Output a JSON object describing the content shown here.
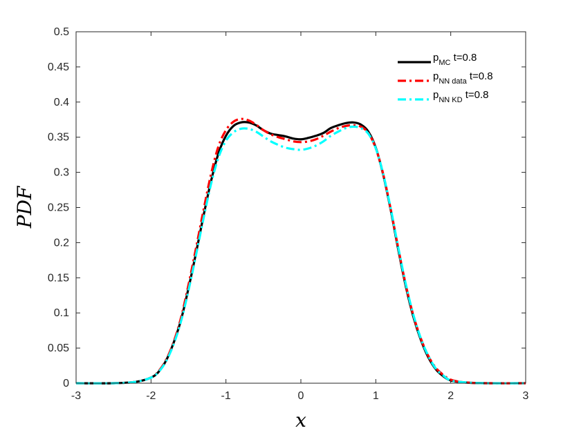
{
  "chart_data": {
    "type": "line",
    "xlabel": "x",
    "ylabel": "PDF",
    "xlim": [
      -3,
      3
    ],
    "ylim": [
      0,
      0.5
    ],
    "xticks": [
      "-3",
      "-2",
      "-1",
      "0",
      "1",
      "2",
      "3"
    ],
    "yticks": [
      "0",
      "0.05",
      "0.1",
      "0.15",
      "0.2",
      "0.25",
      "0.3",
      "0.35",
      "0.4",
      "0.45",
      "0.5"
    ],
    "legend_position": "top-right",
    "x": [
      -3.0,
      -2.5,
      -2.2,
      -2.0,
      -1.9,
      -1.8,
      -1.7,
      -1.6,
      -1.5,
      -1.4,
      -1.3,
      -1.2,
      -1.1,
      -1.0,
      -0.9,
      -0.8,
      -0.7,
      -0.6,
      -0.5,
      -0.4,
      -0.3,
      -0.2,
      -0.1,
      0.0,
      0.1,
      0.2,
      0.3,
      0.4,
      0.5,
      0.6,
      0.7,
      0.8,
      0.9,
      1.0,
      1.1,
      1.2,
      1.3,
      1.4,
      1.5,
      1.6,
      1.7,
      1.8,
      1.9,
      2.0,
      2.2,
      2.5,
      3.0
    ],
    "series": [
      {
        "name_main": "p",
        "name_sub": "MC",
        "name_suffix": " t=0.8",
        "color": "#000000",
        "dash": "solid",
        "values": [
          0,
          0,
          0.002,
          0.008,
          0.016,
          0.032,
          0.057,
          0.09,
          0.135,
          0.185,
          0.238,
          0.287,
          0.327,
          0.352,
          0.366,
          0.371,
          0.371,
          0.367,
          0.36,
          0.355,
          0.353,
          0.351,
          0.348,
          0.347,
          0.349,
          0.352,
          0.356,
          0.363,
          0.367,
          0.37,
          0.371,
          0.368,
          0.358,
          0.335,
          0.296,
          0.246,
          0.19,
          0.138,
          0.095,
          0.062,
          0.037,
          0.02,
          0.01,
          0.004,
          0.001,
          0,
          0
        ]
      },
      {
        "name_main": "p",
        "name_sub": "NN data",
        "name_suffix": " t=0.8",
        "color": "#ff0000",
        "dash": "dashdot",
        "values": [
          0,
          0,
          0.002,
          0.008,
          0.017,
          0.033,
          0.058,
          0.093,
          0.14,
          0.192,
          0.246,
          0.297,
          0.337,
          0.36,
          0.372,
          0.376,
          0.374,
          0.368,
          0.36,
          0.354,
          0.35,
          0.347,
          0.344,
          0.343,
          0.344,
          0.347,
          0.352,
          0.358,
          0.363,
          0.366,
          0.367,
          0.365,
          0.356,
          0.334,
          0.297,
          0.247,
          0.192,
          0.14,
          0.097,
          0.064,
          0.039,
          0.022,
          0.012,
          0.005,
          0.001,
          0,
          0
        ]
      },
      {
        "name_main": "p",
        "name_sub": "NN KD",
        "name_suffix": " t=0.8",
        "color": "#00ffff",
        "dash": "dashdot",
        "values": [
          0,
          0,
          0.002,
          0.008,
          0.016,
          0.031,
          0.055,
          0.088,
          0.132,
          0.182,
          0.234,
          0.283,
          0.321,
          0.345,
          0.357,
          0.362,
          0.362,
          0.358,
          0.351,
          0.344,
          0.339,
          0.335,
          0.333,
          0.332,
          0.334,
          0.338,
          0.344,
          0.352,
          0.358,
          0.363,
          0.365,
          0.363,
          0.355,
          0.334,
          0.297,
          0.248,
          0.193,
          0.141,
          0.098,
          0.064,
          0.039,
          0.021,
          0.011,
          0.004,
          0.001,
          0,
          0
        ]
      }
    ]
  }
}
